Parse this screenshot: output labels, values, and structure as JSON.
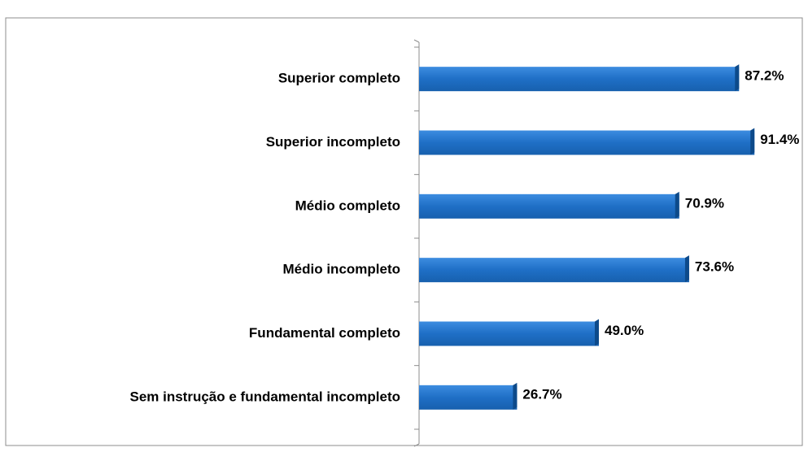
{
  "chart_data": {
    "type": "bar",
    "orientation": "horizontal",
    "categories": [
      "Superior completo",
      "Superior incompleto",
      "Médio completo",
      "Médio incompleto",
      "Fundamental completo",
      "Sem instrução e fundamental incompleto"
    ],
    "values": [
      87.2,
      91.4,
      70.9,
      73.6,
      49.0,
      26.7
    ],
    "value_labels": [
      "87.2%",
      "91.4%",
      "70.9%",
      "73.6%",
      "49.0%",
      "26.7%"
    ],
    "color": "#1f6fc6"
  }
}
